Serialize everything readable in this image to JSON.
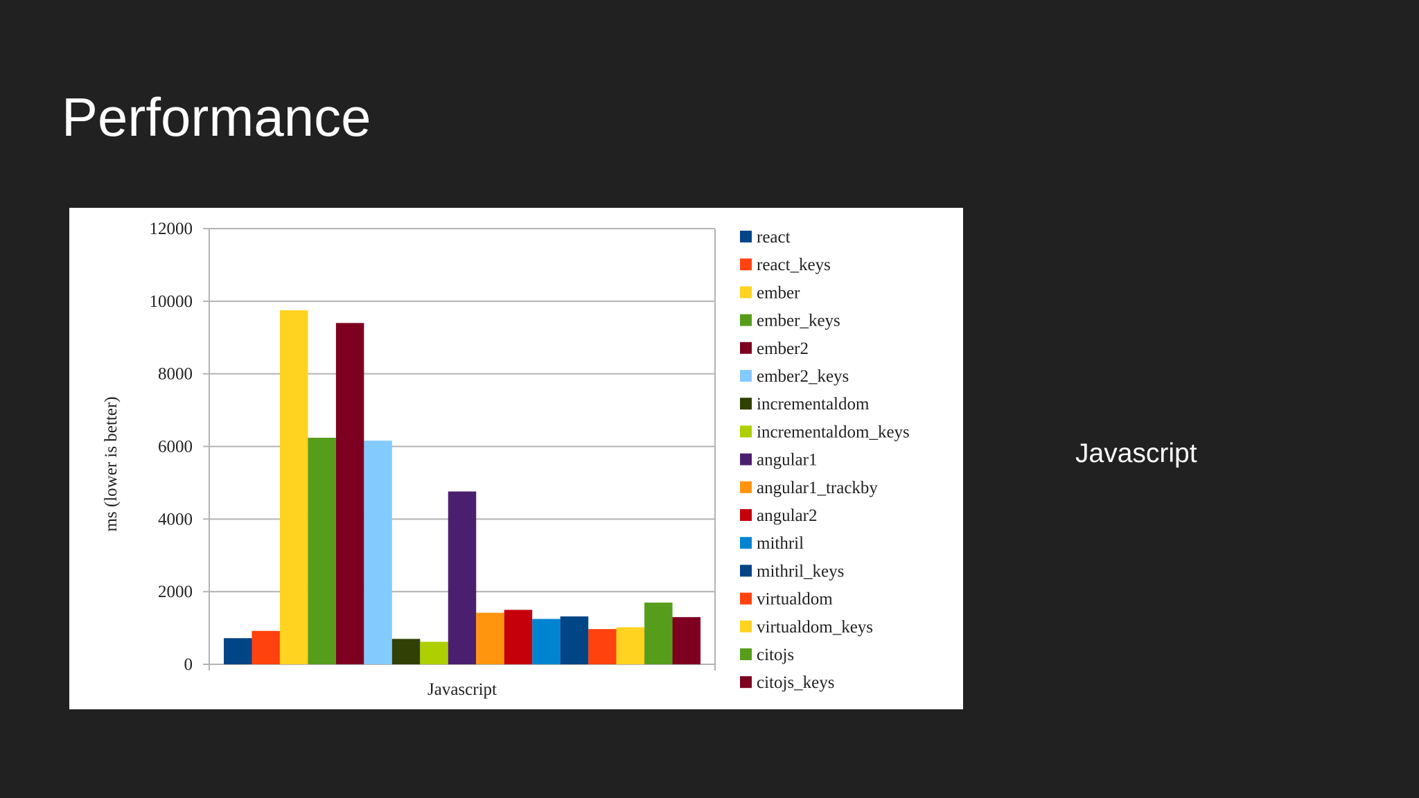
{
  "slide": {
    "title": "Performance",
    "side_text": "Javascript"
  },
  "chart_data": {
    "type": "bar",
    "y_label": "ms (lower is better)",
    "categories": [
      "Javascript"
    ],
    "ylim": [
      0,
      12000
    ],
    "yticks": [
      0,
      2000,
      4000,
      6000,
      8000,
      10000,
      12000
    ],
    "grid": true,
    "legend": "right",
    "series": [
      {
        "name": "react",
        "color": "#004586",
        "values": [
          720
        ]
      },
      {
        "name": "react_keys",
        "color": "#ff420e",
        "values": [
          920
        ]
      },
      {
        "name": "ember",
        "color": "#ffd320",
        "values": [
          9750
        ]
      },
      {
        "name": "ember_keys",
        "color": "#579d1c",
        "values": [
          6240
        ]
      },
      {
        "name": "ember2",
        "color": "#7e0021",
        "values": [
          9400
        ]
      },
      {
        "name": "ember2_keys",
        "color": "#83caff",
        "values": [
          6160
        ]
      },
      {
        "name": "incrementaldom",
        "color": "#314004",
        "values": [
          700
        ]
      },
      {
        "name": "incrementaldom_keys",
        "color": "#aecf00",
        "values": [
          620
        ]
      },
      {
        "name": "angular1",
        "color": "#4b1f6f",
        "values": [
          4760
        ]
      },
      {
        "name": "angular1_trackby",
        "color": "#ff950e",
        "values": [
          1420
        ]
      },
      {
        "name": "angular2",
        "color": "#c5000b",
        "values": [
          1500
        ]
      },
      {
        "name": "mithril",
        "color": "#0084d1",
        "values": [
          1250
        ]
      },
      {
        "name": "mithril_keys",
        "color": "#004586",
        "values": [
          1320
        ]
      },
      {
        "name": "virtualdom",
        "color": "#ff420e",
        "values": [
          970
        ]
      },
      {
        "name": "virtualdom_keys",
        "color": "#ffd320",
        "values": [
          1020
        ]
      },
      {
        "name": "citojs",
        "color": "#579d1c",
        "values": [
          1700
        ]
      },
      {
        "name": "citojs_keys",
        "color": "#7e0021",
        "values": [
          1300
        ]
      }
    ]
  }
}
